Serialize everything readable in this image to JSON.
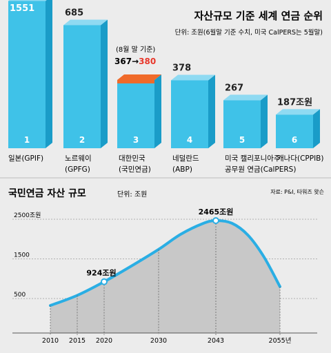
{
  "colors": {
    "background": "#ececec",
    "bar_front": "#3fc2e8",
    "bar_top": "#8fdaf2",
    "bar_side": "#1a9cc8",
    "bar_korea_top": "#f06a2a",
    "highlight_red": "#e8372b",
    "area_fill": "#c8c8c8",
    "line": "#2aaee4",
    "text": "#222222"
  },
  "chart_data": [
    {
      "type": "bar",
      "title": "자산규모 기준 세계 연금 순위",
      "subtitle": "단위: 조원(6월말 기준  수치, 미국 CalPERS는 5월말)",
      "categories": [
        {
          "rank": "1",
          "line1": "일본(GPIF)",
          "line2": ""
        },
        {
          "rank": "2",
          "line1": "노르웨이",
          "line2": "(GPFG)"
        },
        {
          "rank": "3",
          "line1": "대한민국",
          "line2": "(국민연금)"
        },
        {
          "rank": "4",
          "line1": "네덜란드",
          "line2": "(ABP)"
        },
        {
          "rank": "5",
          "line1": "미국 캘리포니아주",
          "line2": "공무원 연금(CalPERS)"
        },
        {
          "rank": "6",
          "line1": "캐나다(CPPIB)",
          "line2": ""
        }
      ],
      "values": [
        1551,
        685,
        380,
        378,
        267,
        187
      ],
      "value_labels": [
        "1551",
        "685",
        "367→380",
        "378",
        "267",
        "187조원"
      ],
      "korea_note": {
        "label": "(8월 말 기준)",
        "from": "367",
        "arrow": "→",
        "to": "380"
      }
    },
    {
      "type": "area",
      "title": "국민연금 자산 규모",
      "unit": "단위: 조원",
      "source": "자료: P&I, 타워즈 왓슨",
      "x": [
        2010,
        2015,
        2020,
        2030,
        2043,
        2055
      ],
      "x_tick_labels": [
        "2010",
        "2015",
        "2020",
        "2030",
        "2043",
        "2055년"
      ],
      "y_ticks": [
        500,
        1500,
        2500
      ],
      "y_tick_labels": [
        "500",
        "1500",
        "2500조원"
      ],
      "series": [
        {
          "x": [
            2010,
            2015,
            2020,
            2025,
            2030,
            2035,
            2040,
            2043,
            2046,
            2049,
            2052,
            2055
          ],
          "y": [
            324,
            580,
            924,
            1320,
            1740,
            2120,
            2390,
            2465,
            2400,
            2100,
            1550,
            800
          ]
        }
      ],
      "annotations": [
        {
          "x": 2020,
          "y": 924,
          "label": "924조원"
        },
        {
          "x": 2043,
          "y": 2465,
          "label": "2465조원"
        }
      ]
    }
  ]
}
